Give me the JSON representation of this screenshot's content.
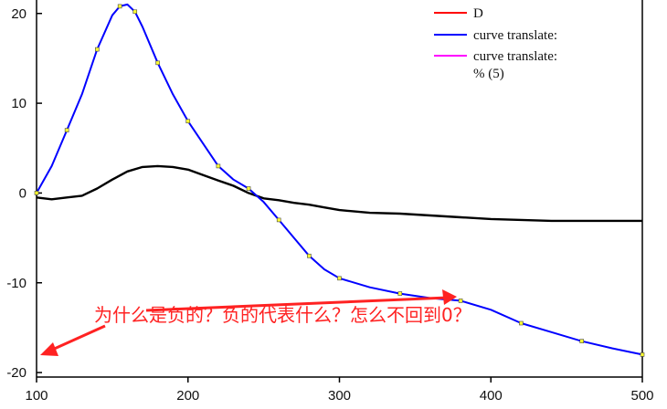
{
  "chart_data": {
    "type": "line",
    "xlim": [
      100,
      500
    ],
    "ylim": [
      -20.5,
      21.5
    ],
    "x_ticks": [
      100,
      200,
      300,
      400,
      500
    ],
    "y_ticks": [
      20,
      10,
      0,
      -10,
      -20
    ],
    "title": "",
    "xlabel": "",
    "ylabel": "",
    "grid": false,
    "legend_position": "top-right",
    "legend": [
      {
        "label": "D",
        "color": "#ff0000"
      },
      {
        "label": "curve translate:",
        "color": "#0000ff"
      },
      {
        "label": "curve translate:",
        "label_line2": "% (5)",
        "color": "#ff00ff"
      }
    ],
    "series": [
      {
        "color": "#000000",
        "x": [
          100,
          110,
          120,
          130,
          140,
          150,
          160,
          170,
          180,
          190,
          200,
          210,
          220,
          230,
          240,
          250,
          260,
          270,
          280,
          290,
          300,
          320,
          340,
          360,
          380,
          400,
          420,
          440,
          460,
          480,
          500
        ],
        "y": [
          -0.5,
          -0.7,
          -0.5,
          -0.3,
          0.5,
          1.5,
          2.4,
          2.9,
          3.0,
          2.9,
          2.6,
          2.0,
          1.4,
          0.8,
          0.0,
          -0.6,
          -0.8,
          -1.1,
          -1.3,
          -1.6,
          -1.9,
          -2.2,
          -2.3,
          -2.5,
          -2.7,
          -2.9,
          -3.0,
          -3.1,
          -3.1,
          -3.1,
          -3.1
        ]
      },
      {
        "color": "#0000ff",
        "x": [
          100,
          110,
          120,
          130,
          140,
          150,
          155,
          160,
          165,
          170,
          180,
          190,
          200,
          210,
          220,
          230,
          240,
          250,
          260,
          270,
          280,
          290,
          300,
          320,
          340,
          360,
          380,
          400,
          420,
          440,
          460,
          480,
          500
        ],
        "y": [
          0,
          3,
          7,
          11,
          16,
          19.8,
          20.8,
          21.0,
          20.2,
          18.5,
          14.5,
          11.0,
          8.0,
          5.5,
          3.0,
          1.5,
          0.5,
          -1.0,
          -3.0,
          -5.0,
          -7.0,
          -8.5,
          -9.5,
          -10.5,
          -11.2,
          -11.7,
          -12.0,
          -13.0,
          -14.5,
          -15.5,
          -16.5,
          -17.3,
          -18.0
        ]
      }
    ],
    "annotation": {
      "text": "为什么是负的？负的代表什么？怎么不回到0？",
      "color": "#ff2222"
    }
  }
}
